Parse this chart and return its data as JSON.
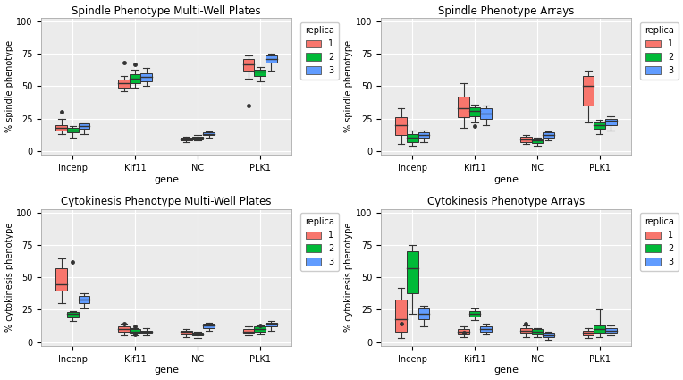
{
  "titles": [
    "Spindle Phenotype Multi-Well Plates",
    "Spindle Phenotype Arrays",
    "Cytokinesis Phenotype Multi-Well Plates",
    "Cytokinesis Phenotype Arrays"
  ],
  "ylabels": [
    "% spindle phenotype",
    "% spindle phenotype",
    "% cytokinesis phenotype",
    "% cytokinesis phenotype"
  ],
  "xlabel": "gene",
  "genes": [
    "Incenp",
    "Kif11",
    "NC",
    "PLK1"
  ],
  "colors": {
    "1": "#F8766D",
    "2": "#00BA38",
    "3": "#619CFF"
  },
  "bg_color": "#EBEBEB",
  "grid_color": "#FFFFFF",
  "box_data": {
    "spindle_plates": {
      "Incenp": {
        "1": {
          "q1": 16,
          "med": 18,
          "q3": 20,
          "whislo": 13,
          "whishi": 25,
          "fliers": [
            30
          ]
        },
        "2": {
          "q1": 14,
          "med": 16,
          "q3": 18,
          "whislo": 10,
          "whishi": 19,
          "fliers": []
        },
        "3": {
          "q1": 17,
          "med": 19,
          "q3": 21,
          "whislo": 13,
          "whishi": 21,
          "fliers": []
        }
      },
      "Kif11": {
        "1": {
          "q1": 49,
          "med": 52,
          "q3": 55,
          "whislo": 46,
          "whishi": 58,
          "fliers": [
            68
          ]
        },
        "2": {
          "q1": 52,
          "med": 56,
          "q3": 59,
          "whislo": 49,
          "whishi": 63,
          "fliers": [
            67
          ]
        },
        "3": {
          "q1": 54,
          "med": 57,
          "q3": 60,
          "whislo": 50,
          "whishi": 64,
          "fliers": []
        }
      },
      "NC": {
        "1": {
          "q1": 8,
          "med": 9,
          "q3": 10,
          "whislo": 7,
          "whishi": 11,
          "fliers": []
        },
        "2": {
          "q1": 9,
          "med": 10,
          "q3": 11,
          "whislo": 8,
          "whishi": 12,
          "fliers": []
        },
        "3": {
          "q1": 12,
          "med": 13,
          "q3": 14,
          "whislo": 10,
          "whishi": 15,
          "fliers": []
        }
      },
      "PLK1": {
        "1": {
          "q1": 62,
          "med": 67,
          "q3": 71,
          "whislo": 56,
          "whishi": 74,
          "fliers": [
            35
          ]
        },
        "2": {
          "q1": 58,
          "med": 61,
          "q3": 63,
          "whislo": 54,
          "whishi": 65,
          "fliers": []
        },
        "3": {
          "q1": 68,
          "med": 71,
          "q3": 74,
          "whislo": 62,
          "whishi": 75,
          "fliers": []
        }
      }
    },
    "spindle_arrays": {
      "Incenp": {
        "1": {
          "q1": 12,
          "med": 20,
          "q3": 26,
          "whislo": 5,
          "whishi": 33,
          "fliers": []
        },
        "2": {
          "q1": 7,
          "med": 10,
          "q3": 13,
          "whislo": 4,
          "whishi": 16,
          "fliers": []
        },
        "3": {
          "q1": 10,
          "med": 12,
          "q3": 14,
          "whislo": 7,
          "whishi": 16,
          "fliers": []
        }
      },
      "Kif11": {
        "1": {
          "q1": 26,
          "med": 33,
          "q3": 42,
          "whislo": 18,
          "whishi": 52,
          "fliers": []
        },
        "2": {
          "q1": 27,
          "med": 31,
          "q3": 34,
          "whislo": 22,
          "whishi": 36,
          "fliers": [
            19
          ]
        },
        "3": {
          "q1": 25,
          "med": 29,
          "q3": 33,
          "whislo": 20,
          "whishi": 35,
          "fliers": []
        }
      },
      "NC": {
        "1": {
          "q1": 7,
          "med": 9,
          "q3": 11,
          "whislo": 5,
          "whishi": 12,
          "fliers": []
        },
        "2": {
          "q1": 6,
          "med": 8,
          "q3": 9,
          "whislo": 4,
          "whishi": 10,
          "fliers": []
        },
        "3": {
          "q1": 10,
          "med": 12,
          "q3": 14,
          "whislo": 8,
          "whishi": 15,
          "fliers": []
        }
      },
      "PLK1": {
        "1": {
          "q1": 35,
          "med": 50,
          "q3": 58,
          "whislo": 22,
          "whishi": 62,
          "fliers": []
        },
        "2": {
          "q1": 17,
          "med": 20,
          "q3": 22,
          "whislo": 13,
          "whishi": 24,
          "fliers": []
        },
        "3": {
          "q1": 20,
          "med": 23,
          "q3": 25,
          "whislo": 16,
          "whishi": 27,
          "fliers": []
        }
      }
    },
    "cytokinesis_plates": {
      "Incenp": {
        "1": {
          "q1": 40,
          "med": 45,
          "q3": 57,
          "whislo": 30,
          "whishi": 65,
          "fliers": []
        },
        "2": {
          "q1": 19,
          "med": 22,
          "q3": 23,
          "whislo": 16,
          "whishi": 24,
          "fliers": [
            62
          ]
        },
        "3": {
          "q1": 30,
          "med": 33,
          "q3": 36,
          "whislo": 26,
          "whishi": 38,
          "fliers": []
        }
      },
      "Kif11": {
        "1": {
          "q1": 8,
          "med": 10,
          "q3": 12,
          "whislo": 5,
          "whishi": 14,
          "fliers": [
            14
          ]
        },
        "2": {
          "q1": 7,
          "med": 8,
          "q3": 10,
          "whislo": 5,
          "whishi": 11,
          "fliers": [
            6,
            12
          ]
        },
        "3": {
          "q1": 7,
          "med": 8,
          "q3": 9,
          "whislo": 5,
          "whishi": 11,
          "fliers": []
        }
      },
      "NC": {
        "1": {
          "q1": 6,
          "med": 8,
          "q3": 9,
          "whislo": 4,
          "whishi": 10,
          "fliers": []
        },
        "2": {
          "q1": 5,
          "med": 6,
          "q3": 7,
          "whislo": 3,
          "whishi": 8,
          "fliers": []
        },
        "3": {
          "q1": 11,
          "med": 13,
          "q3": 14,
          "whislo": 9,
          "whishi": 15,
          "fliers": []
        }
      },
      "PLK1": {
        "1": {
          "q1": 7,
          "med": 8,
          "q3": 10,
          "whislo": 5,
          "whishi": 12,
          "fliers": []
        },
        "2": {
          "q1": 8,
          "med": 10,
          "q3": 12,
          "whislo": 6,
          "whishi": 13,
          "fliers": [
            13
          ]
        },
        "3": {
          "q1": 12,
          "med": 14,
          "q3": 15,
          "whislo": 9,
          "whishi": 16,
          "fliers": []
        }
      }
    },
    "cytokinesis_arrays": {
      "Incenp": {
        "1": {
          "q1": 8,
          "med": 18,
          "q3": 33,
          "whislo": 3,
          "whishi": 42,
          "fliers": [
            14
          ]
        },
        "2": {
          "q1": 38,
          "med": 57,
          "q3": 70,
          "whislo": 22,
          "whishi": 75,
          "fliers": []
        },
        "3": {
          "q1": 18,
          "med": 22,
          "q3": 26,
          "whislo": 12,
          "whishi": 28,
          "fliers": []
        }
      },
      "Kif11": {
        "1": {
          "q1": 6,
          "med": 8,
          "q3": 10,
          "whislo": 4,
          "whishi": 12,
          "fliers": [
            7
          ]
        },
        "2": {
          "q1": 20,
          "med": 22,
          "q3": 24,
          "whislo": 17,
          "whishi": 26,
          "fliers": []
        },
        "3": {
          "q1": 8,
          "med": 10,
          "q3": 12,
          "whislo": 6,
          "whishi": 14,
          "fliers": []
        }
      },
      "NC": {
        "1": {
          "q1": 7,
          "med": 9,
          "q3": 11,
          "whislo": 4,
          "whishi": 13,
          "fliers": [
            14
          ]
        },
        "2": {
          "q1": 6,
          "med": 8,
          "q3": 10,
          "whislo": 4,
          "whishi": 11,
          "fliers": []
        },
        "3": {
          "q1": 4,
          "med": 5,
          "q3": 7,
          "whislo": 2,
          "whishi": 8,
          "fliers": []
        }
      },
      "PLK1": {
        "1": {
          "q1": 5,
          "med": 7,
          "q3": 9,
          "whislo": 3,
          "whishi": 11,
          "fliers": []
        },
        "2": {
          "q1": 7,
          "med": 10,
          "q3": 13,
          "whislo": 4,
          "whishi": 25,
          "fliers": []
        },
        "3": {
          "q1": 7,
          "med": 9,
          "q3": 11,
          "whislo": 5,
          "whishi": 13,
          "fliers": []
        }
      }
    }
  }
}
